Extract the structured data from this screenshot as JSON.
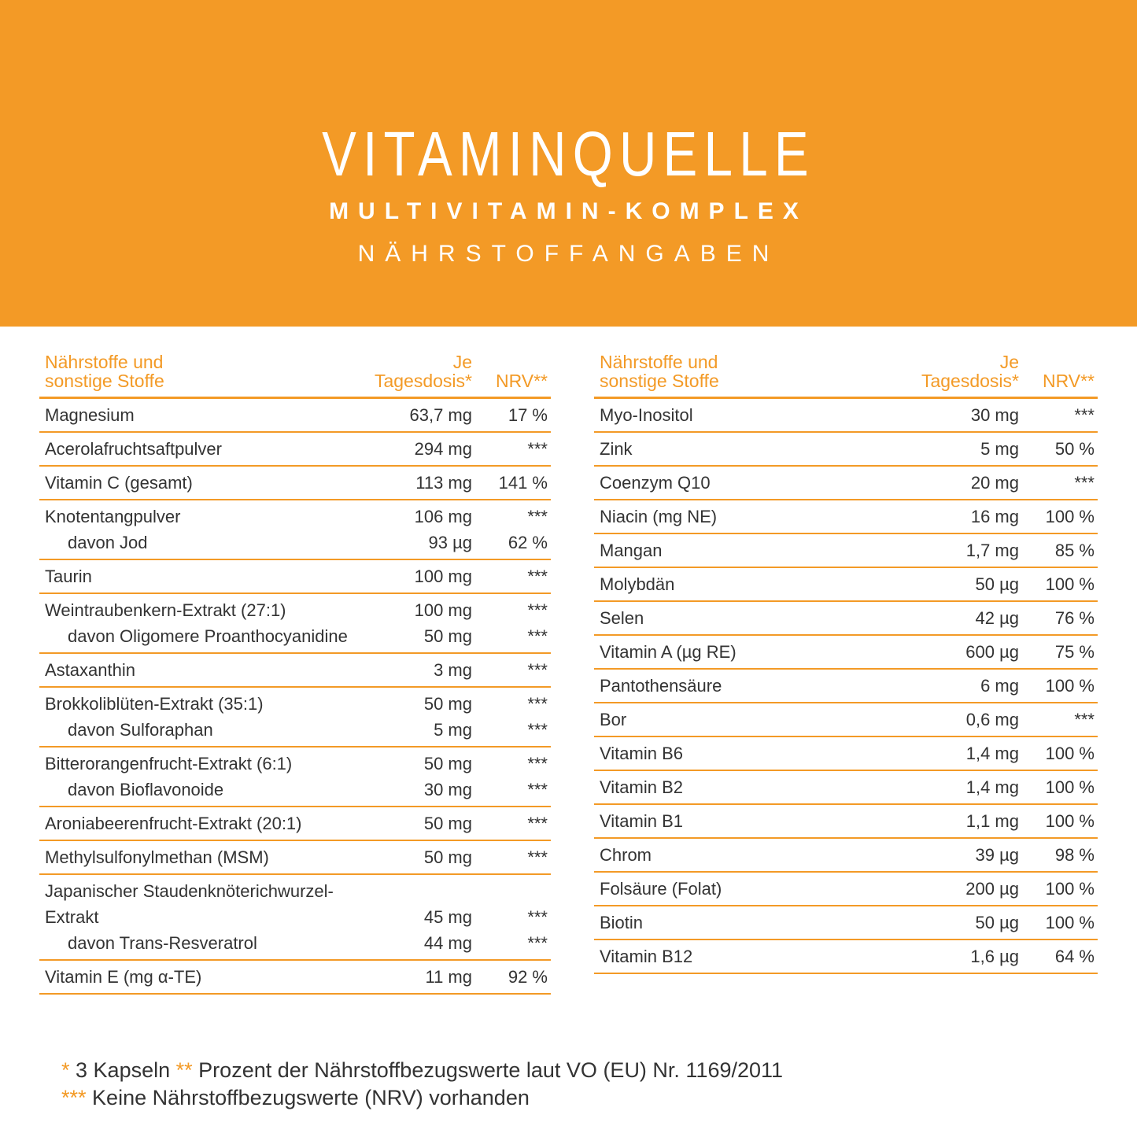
{
  "header": {
    "title": "VITAMINQUELLE",
    "subtitle": "MULTIVITAMIN-KOMPLEX",
    "section": "NÄHRSTOFFANGABEN"
  },
  "tables": [
    {
      "columns": [
        "Nährstoffe und sonstige Stoffe",
        "Je Tagesdosis*",
        "NRV**"
      ],
      "rows": [
        {
          "name": "Magnesium",
          "amount": "63,7 mg",
          "nrv": "17 %"
        },
        {
          "name": "Acerolafruchtsaftpulver",
          "amount": "294 mg",
          "nrv": "***"
        },
        {
          "name": "Vitamin C (gesamt)",
          "amount": "113 mg",
          "nrv": "141 %"
        },
        {
          "name": "Knotentangpulver",
          "amount": "106 mg",
          "nrv": "***",
          "sub": [
            {
              "name": "davon Jod",
              "amount": "93 µg",
              "nrv": "62 %"
            }
          ]
        },
        {
          "name": "Taurin",
          "amount": "100 mg",
          "nrv": "***"
        },
        {
          "name": "Weintraubenkern-Extrakt (27:1)",
          "amount": "100 mg",
          "nrv": "***",
          "sub": [
            {
              "name": "davon Oligomere Proanthocyanidine",
              "amount": "50 mg",
              "nrv": "***"
            }
          ]
        },
        {
          "name": "Astaxanthin",
          "amount": "3 mg",
          "nrv": "***"
        },
        {
          "name": "Brokkoliblüten-Extrakt (35:1)",
          "amount": "50 mg",
          "nrv": "***",
          "sub": [
            {
              "name": "davon Sulforaphan",
              "amount": "5 mg",
              "nrv": "***"
            }
          ]
        },
        {
          "name": "Bitterorangenfrucht-Extrakt (6:1)",
          "amount": "50 mg",
          "nrv": "***",
          "sub": [
            {
              "name": "davon Bioflavonoide",
              "amount": "30 mg",
              "nrv": "***"
            }
          ]
        },
        {
          "name": "Aroniabeerenfrucht-Extrakt (20:1)",
          "amount": "50 mg",
          "nrv": "***"
        },
        {
          "name": "Methylsulfonylmethan (MSM)",
          "amount": "50 mg",
          "nrv": "***"
        },
        {
          "name": "Japanischer Staudenknöterichwurzel-Extrakt",
          "amount": "45 mg",
          "nrv": "***",
          "sub": [
            {
              "name": "davon Trans-Resveratrol",
              "amount": "44 mg",
              "nrv": "***"
            }
          ]
        },
        {
          "name": "Vitamin E (mg α-TE)",
          "amount": "11 mg",
          "nrv": "92 %"
        }
      ]
    },
    {
      "columns": [
        "Nährstoffe und sonstige Stoffe",
        "Je Tagesdosis*",
        "NRV**"
      ],
      "rows": [
        {
          "name": "Myo-Inositol",
          "amount": "30 mg",
          "nrv": "***"
        },
        {
          "name": "Zink",
          "amount": "5 mg",
          "nrv": "50 %"
        },
        {
          "name": "Coenzym Q10",
          "amount": "20 mg",
          "nrv": "***"
        },
        {
          "name": "Niacin (mg NE)",
          "amount": "16 mg",
          "nrv": "100 %"
        },
        {
          "name": "Mangan",
          "amount": "1,7 mg",
          "nrv": "85 %"
        },
        {
          "name": "Molybdän",
          "amount": "50 µg",
          "nrv": "100 %"
        },
        {
          "name": "Selen",
          "amount": "42 µg",
          "nrv": "76 %"
        },
        {
          "name": "Vitamin A (µg RE)",
          "amount": "600 µg",
          "nrv": "75 %"
        },
        {
          "name": "Pantothensäure",
          "amount": "6 mg",
          "nrv": "100 %"
        },
        {
          "name": "Bor",
          "amount": "0,6 mg",
          "nrv": "***"
        },
        {
          "name": "Vitamin B6",
          "amount": "1,4 mg",
          "nrv": "100 %"
        },
        {
          "name": "Vitamin B2",
          "amount": "1,4 mg",
          "nrv": "100 %"
        },
        {
          "name": "Vitamin B1",
          "amount": "1,1 mg",
          "nrv": "100 %"
        },
        {
          "name": "Chrom",
          "amount": "39 µg",
          "nrv": "98 %"
        },
        {
          "name": "Folsäure (Folat)",
          "amount": "200 µg",
          "nrv": "100 %"
        },
        {
          "name": "Biotin",
          "amount": "50 µg",
          "nrv": "100 %"
        },
        {
          "name": "Vitamin B12",
          "amount": "1,6 µg",
          "nrv": "64 %"
        }
      ]
    }
  ],
  "footnotes": [
    {
      "mark": "*",
      "text": "3 Kapseln"
    },
    {
      "mark": "**",
      "text": "Prozent der Nährstoffbezugswerte laut VO (EU) Nr. 1169/2011"
    },
    {
      "mark": "***",
      "text": "Keine Nährstoffbezugswerte (NRV) vorhanden"
    }
  ]
}
